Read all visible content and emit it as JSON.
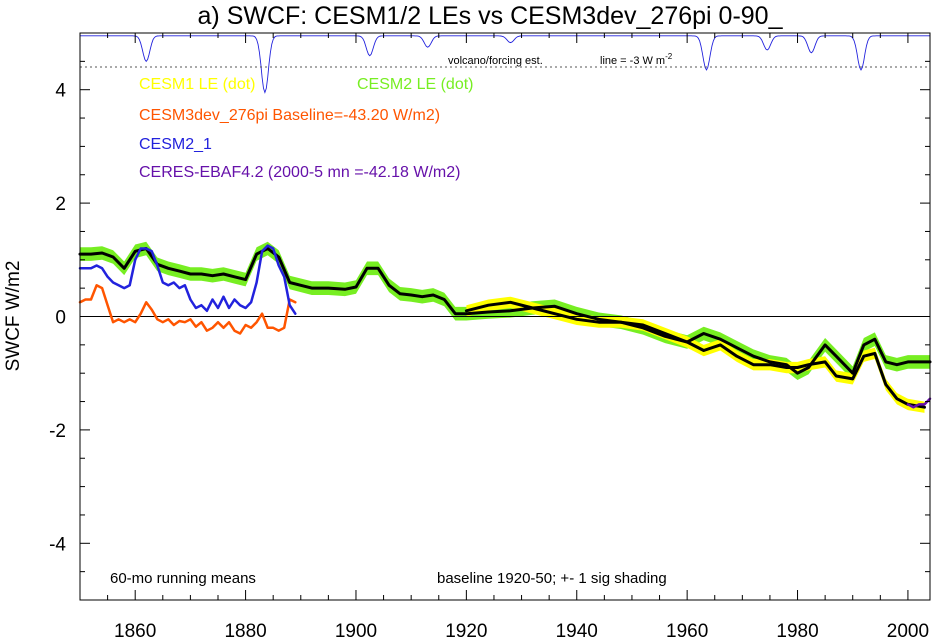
{
  "chart_data": {
    "type": "line",
    "title": "a) SWCF: CESM1/2 LEs vs CESM3dev_276pi 0-90_",
    "ylabel": "SWCF W/m2",
    "xlabel": "",
    "xlim": [
      1850,
      2004
    ],
    "ylim": [
      -5,
      5
    ],
    "x_ticks": [
      {
        "v": 1860,
        "label": "1860"
      },
      {
        "v": 1880,
        "label": "1880"
      },
      {
        "v": 1900,
        "label": "1900"
      },
      {
        "v": 1920,
        "label": "1920"
      },
      {
        "v": 1940,
        "label": "1940"
      },
      {
        "v": 1960,
        "label": "1960"
      },
      {
        "v": 1980,
        "label": "1980"
      },
      {
        "v": 2000,
        "label": "2000"
      }
    ],
    "y_ticks": [
      {
        "v": 4,
        "label": "4"
      },
      {
        "v": 2,
        "label": "2"
      },
      {
        "v": 0,
        "label": "0"
      },
      {
        "v": -2,
        "label": "-2"
      },
      {
        "v": -4,
        "label": "-4"
      }
    ],
    "grid": false,
    "zero_line": 0,
    "volcano_ref_line": 4.4,
    "colors": {
      "cesm1": "#ffff00",
      "cesm2": "#77ee22",
      "cesm3dev": "#ff5500",
      "cesm2_1": "#2222dd",
      "ceres": "#6611aa",
      "volcano": "#2222dd",
      "mean": "#000000"
    },
    "legend": [
      {
        "label": "CESM1 LE (dot)",
        "color": "#ffff00"
      },
      {
        "label": "CESM2 LE (dot)",
        "color": "#77ee22"
      },
      {
        "label": "CESM3dev_276pi Baseline=-43.20 W/m2)",
        "color": "#ff5500"
      },
      {
        "label": "CESM2_1",
        "color": "#2222dd"
      },
      {
        "label": "CERES-EBAF4.2 (2000-5 mn =-42.18 W/m2)",
        "color": "#6611aa"
      }
    ],
    "annotations": {
      "volcano": "volcano/forcing est.",
      "line": "line = -3 W m",
      "line_sup": "-2",
      "running": "60-mo running means",
      "baseline": "baseline 1920-50; +- 1 sig shading"
    },
    "series": [
      {
        "name": "CESM2 LE (dot)",
        "color": "#77ee22",
        "band": 0.12,
        "x": [
          1850,
          1852,
          1854,
          1856,
          1858,
          1860,
          1862,
          1864,
          1866,
          1868,
          1870,
          1872,
          1874,
          1876,
          1878,
          1880,
          1882,
          1884,
          1886,
          1888,
          1890,
          1892,
          1895,
          1898,
          1900,
          1902,
          1904,
          1906,
          1908,
          1910,
          1912,
          1914,
          1916,
          1918,
          1920,
          1924,
          1928,
          1932,
          1936,
          1940,
          1944,
          1948,
          1952,
          1956,
          1960,
          1963,
          1966,
          1969,
          1972,
          1975,
          1978,
          1980,
          1982,
          1985,
          1987,
          1990,
          1992,
          1994,
          1996,
          1998,
          2000,
          2002,
          2004
        ],
        "values": [
          1.1,
          1.1,
          1.12,
          1.05,
          0.85,
          1.15,
          1.2,
          0.92,
          0.85,
          0.8,
          0.75,
          0.75,
          0.72,
          0.75,
          0.7,
          0.65,
          1.1,
          1.2,
          1.05,
          0.6,
          0.55,
          0.5,
          0.5,
          0.48,
          0.52,
          0.85,
          0.85,
          0.55,
          0.4,
          0.38,
          0.35,
          0.38,
          0.3,
          0.05,
          0.05,
          0.08,
          0.1,
          0.15,
          0.18,
          0.05,
          -0.05,
          -0.1,
          -0.2,
          -0.35,
          -0.45,
          -0.3,
          -0.4,
          -0.55,
          -0.7,
          -0.8,
          -0.85,
          -1.0,
          -0.9,
          -0.5,
          -0.7,
          -1.0,
          -0.5,
          -0.4,
          -0.8,
          -0.85,
          -0.8,
          -0.8,
          -0.8
        ]
      },
      {
        "name": "CESM1 LE (dot)",
        "color": "#ffff00",
        "band": 0.1,
        "x": [
          1920,
          1924,
          1928,
          1932,
          1936,
          1940,
          1944,
          1948,
          1952,
          1956,
          1960,
          1963,
          1966,
          1969,
          1972,
          1975,
          1978,
          1980,
          1982,
          1985,
          1987,
          1990,
          1992,
          1994,
          1996,
          1998,
          2000,
          2003
        ],
        "values": [
          0.1,
          0.2,
          0.25,
          0.15,
          0.05,
          -0.05,
          -0.1,
          -0.1,
          -0.15,
          -0.3,
          -0.45,
          -0.6,
          -0.5,
          -0.7,
          -0.85,
          -0.85,
          -0.9,
          -0.9,
          -0.85,
          -0.8,
          -1.05,
          -1.1,
          -0.7,
          -0.65,
          -1.2,
          -1.45,
          -1.55,
          -1.6
        ]
      },
      {
        "name": "",
        "color": "#000000",
        "x": [
          1850,
          1852,
          1854,
          1856,
          1858,
          1860,
          1862,
          1864,
          1866,
          1868,
          1870,
          1872,
          1874,
          1876,
          1878,
          1880,
          1882,
          1884,
          1886,
          1888,
          1890,
          1892,
          1895,
          1898,
          1900,
          1902,
          1904,
          1906,
          1908,
          1910,
          1912,
          1914,
          1916,
          1918,
          1920,
          1924,
          1928,
          1932,
          1936,
          1940,
          1944,
          1948,
          1952,
          1956,
          1960,
          1963,
          1966,
          1969,
          1972,
          1975,
          1978,
          1980,
          1982,
          1985,
          1987,
          1990,
          1992,
          1994,
          1996,
          1998,
          2000,
          2002,
          2004
        ],
        "values": [
          1.1,
          1.1,
          1.12,
          1.05,
          0.85,
          1.15,
          1.2,
          0.92,
          0.85,
          0.8,
          0.75,
          0.75,
          0.72,
          0.75,
          0.7,
          0.65,
          1.1,
          1.2,
          1.05,
          0.6,
          0.55,
          0.5,
          0.5,
          0.48,
          0.52,
          0.85,
          0.85,
          0.55,
          0.4,
          0.38,
          0.35,
          0.38,
          0.3,
          0.05,
          0.05,
          0.08,
          0.1,
          0.15,
          0.18,
          0.05,
          -0.05,
          -0.1,
          -0.2,
          -0.35,
          -0.45,
          -0.3,
          -0.4,
          -0.55,
          -0.7,
          -0.8,
          -0.85,
          -1.0,
          -0.9,
          -0.5,
          -0.7,
          -1.0,
          -0.5,
          -0.4,
          -0.8,
          -0.85,
          -0.8,
          -0.8,
          -0.8
        ]
      },
      {
        "name": "",
        "color": "#000000",
        "x": [
          1920,
          1924,
          1928,
          1932,
          1936,
          1940,
          1944,
          1948,
          1952,
          1956,
          1960,
          1963,
          1966,
          1969,
          1972,
          1975,
          1978,
          1980,
          1982,
          1985,
          1987,
          1990,
          1992,
          1994,
          1996,
          1998,
          2000,
          2003
        ],
        "values": [
          0.1,
          0.2,
          0.25,
          0.15,
          0.05,
          -0.05,
          -0.1,
          -0.1,
          -0.15,
          -0.3,
          -0.45,
          -0.6,
          -0.5,
          -0.7,
          -0.85,
          -0.85,
          -0.9,
          -0.9,
          -0.85,
          -0.8,
          -1.05,
          -1.1,
          -0.7,
          -0.65,
          -1.2,
          -1.45,
          -1.55,
          -1.6
        ]
      },
      {
        "name": "CESM3dev_276pi Baseline=-43.20 W/m2)",
        "color": "#ff5500",
        "x": [
          1850,
          1851,
          1852,
          1853,
          1854,
          1855,
          1856,
          1857,
          1858,
          1859,
          1860,
          1861,
          1862,
          1863,
          1864,
          1865,
          1866,
          1867,
          1868,
          1869,
          1870,
          1871,
          1872,
          1873,
          1874,
          1875,
          1876,
          1877,
          1878,
          1879,
          1880,
          1881,
          1882,
          1883,
          1884,
          1885,
          1886,
          1887,
          1888,
          1889
        ],
        "values": [
          0.25,
          0.3,
          0.3,
          0.55,
          0.5,
          0.2,
          -0.1,
          -0.05,
          -0.1,
          -0.05,
          -0.1,
          0.05,
          0.25,
          0.12,
          -0.05,
          -0.1,
          -0.05,
          -0.15,
          -0.08,
          -0.1,
          -0.05,
          -0.18,
          -0.1,
          -0.25,
          -0.2,
          -0.1,
          -0.2,
          -0.1,
          -0.25,
          -0.3,
          -0.15,
          -0.2,
          -0.1,
          0.05,
          -0.2,
          -0.2,
          -0.25,
          -0.2,
          0.3,
          0.25
        ]
      },
      {
        "name": "CESM2_1",
        "color": "#2222dd",
        "x": [
          1850,
          1852,
          1853,
          1854,
          1855,
          1856,
          1857,
          1858,
          1859,
          1860,
          1861,
          1862,
          1863,
          1864,
          1865,
          1866,
          1867,
          1868,
          1869,
          1870,
          1871,
          1872,
          1873,
          1874,
          1875,
          1876,
          1877,
          1878,
          1879,
          1880,
          1881,
          1882,
          1883,
          1884,
          1885,
          1886,
          1887,
          1888,
          1889
        ],
        "values": [
          0.85,
          0.85,
          0.9,
          0.85,
          0.7,
          0.6,
          0.55,
          0.5,
          0.55,
          1.0,
          1.2,
          1.2,
          1.15,
          0.9,
          0.6,
          0.55,
          0.6,
          0.5,
          0.55,
          0.3,
          0.15,
          0.2,
          0.1,
          0.3,
          0.15,
          0.35,
          0.15,
          0.3,
          0.2,
          0.15,
          0.25,
          0.6,
          1.15,
          1.25,
          1.2,
          0.9,
          0.7,
          0.2,
          0.05
        ]
      },
      {
        "name": "CERES-EBAF4.2 (2000-5 mn =-42.18 W/m2)",
        "color": "#6611aa",
        "x": [
          2000,
          2001,
          2002,
          2003,
          2004
        ],
        "values": [
          -1.55,
          -1.6,
          -1.55,
          -1.55,
          -1.45
        ]
      }
    ],
    "volcano": {
      "color": "#2222dd",
      "baseline": 4.95,
      "dips": [
        {
          "x": 1862,
          "depth": 0.45
        },
        {
          "x": 1883.5,
          "depth": 1.0
        },
        {
          "x": 1902.5,
          "depth": 0.35
        },
        {
          "x": 1913,
          "depth": 0.2
        },
        {
          "x": 1928,
          "depth": 0.12
        },
        {
          "x": 1963.5,
          "depth": 0.6
        },
        {
          "x": 1974.5,
          "depth": 0.25
        },
        {
          "x": 1982.5,
          "depth": 0.3
        },
        {
          "x": 1991.5,
          "depth": 0.6
        }
      ]
    }
  }
}
